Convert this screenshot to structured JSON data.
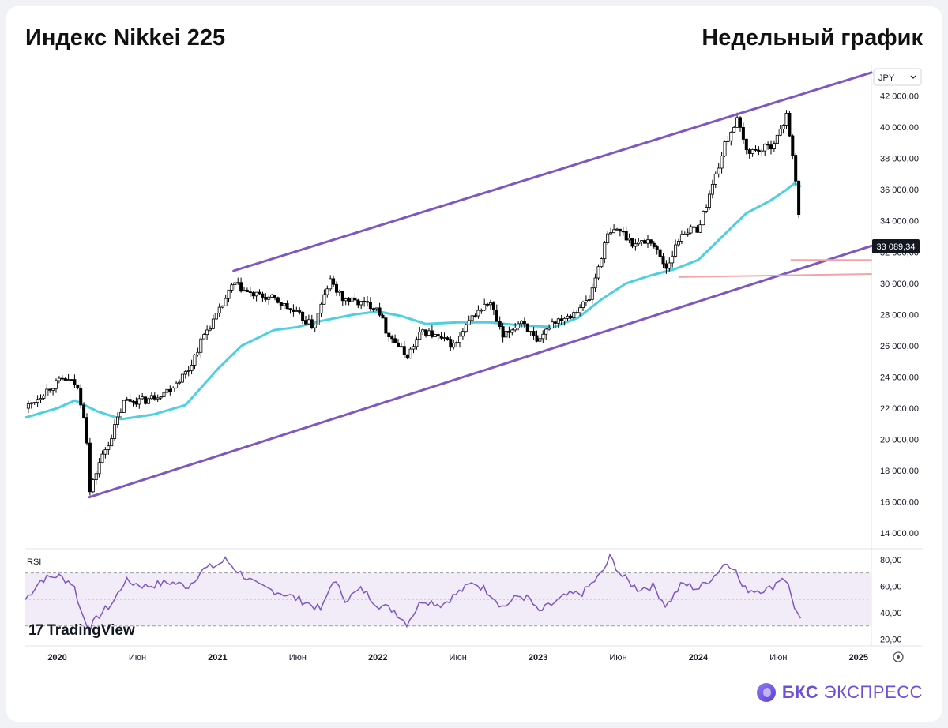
{
  "header": {
    "title": "Индекс Nikkei 225",
    "subtitle": "Недельный график"
  },
  "currency_selector": {
    "value": "JPY",
    "icon": "chevron-down-icon"
  },
  "last_price": "33 089,34",
  "watermark": "TradingView",
  "brand": {
    "bold": "БКС",
    "rest": "ЭКСПРЕСС"
  },
  "settings_icon": "gear-icon",
  "colors": {
    "channel": "#7e57c2",
    "ma": "#4dd0e1",
    "support": "#f4a4a8",
    "rsi_line": "#7e57c2",
    "rsi_band": "#ede7f6",
    "candle_up": "#ffffff",
    "candle_down": "#000000"
  },
  "chart_data": [
    {
      "type": "candlestick",
      "title": "Индекс Nikkei 225",
      "subtitle": "Недельный график",
      "currency": "JPY",
      "x_ticks": [
        "2020",
        "Июн",
        "2021",
        "Июн",
        "2022",
        "Июн",
        "2023",
        "Июн",
        "2024",
        "Июн",
        "2025"
      ],
      "y_ticks": [
        "14 000,00",
        "16 000,00",
        "18 000,00",
        "20 000,00",
        "22 000,00",
        "24 000,00",
        "26 000,00",
        "28 000,00",
        "30 000,00",
        "32 000,00",
        "34 000,00",
        "36 000,00",
        "38 000,00",
        "40 000,00",
        "42 000,00"
      ],
      "ylim": [
        13000,
        44000
      ],
      "xlim": [
        2019.8,
        2025.08
      ],
      "last_value": 33089.34,
      "price_path": [
        [
          2019.8,
          22000
        ],
        [
          2019.95,
          23300
        ],
        [
          2020.04,
          23900
        ],
        [
          2020.12,
          23500
        ],
        [
          2020.18,
          21000
        ],
        [
          2020.2,
          16500
        ],
        [
          2020.26,
          18500
        ],
        [
          2020.33,
          20000
        ],
        [
          2020.42,
          22500
        ],
        [
          2020.55,
          22500
        ],
        [
          2020.7,
          23200
        ],
        [
          2020.82,
          24500
        ],
        [
          2020.92,
          26800
        ],
        [
          2021.0,
          28000
        ],
        [
          2021.1,
          30000
        ],
        [
          2021.2,
          29300
        ],
        [
          2021.35,
          29000
        ],
        [
          2021.5,
          28000
        ],
        [
          2021.6,
          27200
        ],
        [
          2021.7,
          30200
        ],
        [
          2021.78,
          29000
        ],
        [
          2021.87,
          28800
        ],
        [
          2022.0,
          28500
        ],
        [
          2022.05,
          27000
        ],
        [
          2022.18,
          25300
        ],
        [
          2022.28,
          27000
        ],
        [
          2022.38,
          26500
        ],
        [
          2022.48,
          26000
        ],
        [
          2022.6,
          28000
        ],
        [
          2022.7,
          28800
        ],
        [
          2022.78,
          26500
        ],
        [
          2022.9,
          27700
        ],
        [
          2023.0,
          26000
        ],
        [
          2023.08,
          27500
        ],
        [
          2023.2,
          28000
        ],
        [
          2023.32,
          29000
        ],
        [
          2023.43,
          33000
        ],
        [
          2023.5,
          33500
        ],
        [
          2023.6,
          32500
        ],
        [
          2023.7,
          32800
        ],
        [
          2023.8,
          31000
        ],
        [
          2023.9,
          33300
        ],
        [
          2024.0,
          33500
        ],
        [
          2024.08,
          36000
        ],
        [
          2024.17,
          39000
        ],
        [
          2024.24,
          40500
        ],
        [
          2024.3,
          38500
        ],
        [
          2024.38,
          38500
        ],
        [
          2024.45,
          38800
        ],
        [
          2024.52,
          39800
        ],
        [
          2024.55,
          41000
        ],
        [
          2024.59,
          38000
        ],
        [
          2024.62,
          35200
        ],
        [
          2024.64,
          33089
        ]
      ],
      "moving_average": [
        [
          2019.8,
          21400
        ],
        [
          2020.0,
          22000
        ],
        [
          2020.11,
          22500
        ],
        [
          2020.25,
          21800
        ],
        [
          2020.4,
          21300
        ],
        [
          2020.6,
          21600
        ],
        [
          2020.8,
          22200
        ],
        [
          2021.0,
          24500
        ],
        [
          2021.15,
          26000
        ],
        [
          2021.35,
          27000
        ],
        [
          2021.5,
          27200
        ],
        [
          2021.65,
          27600
        ],
        [
          2021.85,
          28000
        ],
        [
          2022.0,
          28200
        ],
        [
          2022.15,
          27900
        ],
        [
          2022.3,
          27400
        ],
        [
          2022.5,
          27500
        ],
        [
          2022.7,
          27500
        ],
        [
          2022.9,
          27300
        ],
        [
          2023.1,
          27200
        ],
        [
          2023.25,
          27800
        ],
        [
          2023.4,
          29000
        ],
        [
          2023.55,
          30000
        ],
        [
          2023.7,
          30500
        ],
        [
          2023.85,
          30900
        ],
        [
          2024.0,
          31500
        ],
        [
          2024.15,
          33000
        ],
        [
          2024.3,
          34500
        ],
        [
          2024.45,
          35300
        ],
        [
          2024.55,
          36000
        ],
        [
          2024.6,
          36400
        ],
        [
          2024.64,
          36200
        ]
      ],
      "channel_upper": [
        [
          2021.1,
          30800
        ],
        [
          2025.08,
          43500
        ]
      ],
      "channel_lower": [
        [
          2020.2,
          16300
        ],
        [
          2025.08,
          32400
        ]
      ],
      "support_lines": [
        [
          [
            2024.58,
            31500
          ],
          [
            2025.08,
            31500
          ]
        ],
        [
          [
            2023.88,
            30400
          ],
          [
            2025.08,
            30600
          ]
        ]
      ]
    },
    {
      "type": "line",
      "title": "RSI",
      "y_ticks": [
        "20,00",
        "40,00",
        "60,00",
        "80,00"
      ],
      "ylim": [
        15,
        87
      ],
      "band": [
        30,
        70
      ],
      "midline": 50,
      "rsi": [
        [
          2019.8,
          50
        ],
        [
          2019.9,
          65
        ],
        [
          2020.0,
          68
        ],
        [
          2020.1,
          62
        ],
        [
          2020.15,
          40
        ],
        [
          2020.2,
          28
        ],
        [
          2020.26,
          38
        ],
        [
          2020.35,
          48
        ],
        [
          2020.42,
          64
        ],
        [
          2020.55,
          60
        ],
        [
          2020.7,
          63
        ],
        [
          2020.82,
          60
        ],
        [
          2020.9,
          72
        ],
        [
          2021.0,
          76
        ],
        [
          2021.05,
          80
        ],
        [
          2021.12,
          72
        ],
        [
          2021.25,
          60
        ],
        [
          2021.4,
          55
        ],
        [
          2021.55,
          48
        ],
        [
          2021.65,
          42
        ],
        [
          2021.72,
          65
        ],
        [
          2021.8,
          50
        ],
        [
          2021.9,
          58
        ],
        [
          2022.0,
          46
        ],
        [
          2022.1,
          42
        ],
        [
          2022.18,
          32
        ],
        [
          2022.28,
          50
        ],
        [
          2022.4,
          46
        ],
        [
          2022.5,
          55
        ],
        [
          2022.6,
          63
        ],
        [
          2022.7,
          55
        ],
        [
          2022.78,
          44
        ],
        [
          2022.88,
          53
        ],
        [
          2022.95,
          50
        ],
        [
          2023.0,
          40
        ],
        [
          2023.08,
          46
        ],
        [
          2023.18,
          53
        ],
        [
          2023.28,
          55
        ],
        [
          2023.4,
          70
        ],
        [
          2023.45,
          82
        ],
        [
          2023.52,
          68
        ],
        [
          2023.62,
          58
        ],
        [
          2023.72,
          60
        ],
        [
          2023.8,
          45
        ],
        [
          2023.9,
          62
        ],
        [
          2024.0,
          58
        ],
        [
          2024.1,
          68
        ],
        [
          2024.17,
          78
        ],
        [
          2024.22,
          75
        ],
        [
          2024.28,
          58
        ],
        [
          2024.35,
          57
        ],
        [
          2024.45,
          58
        ],
        [
          2024.52,
          67
        ],
        [
          2024.55,
          65
        ],
        [
          2024.6,
          45
        ],
        [
          2024.64,
          33
        ]
      ]
    }
  ]
}
